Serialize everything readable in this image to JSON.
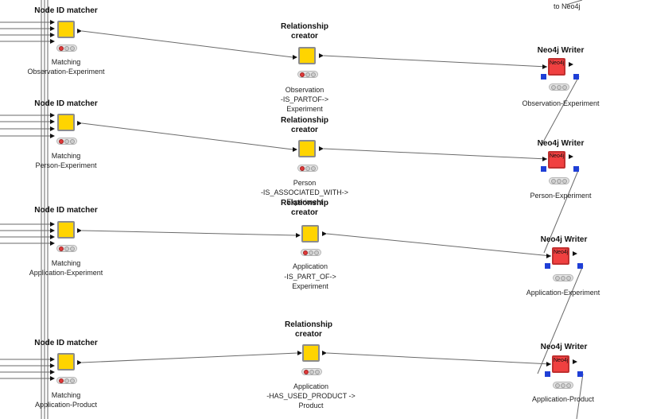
{
  "top_fragment": "to Neo4j",
  "rows": [
    {
      "matcher": {
        "title": "Node ID matcher",
        "label1": "Matching",
        "label2": "Observation-Experiment"
      },
      "creator": {
        "title1": "Relationship",
        "title2": "creator",
        "label1": "Observation",
        "label2": "-IS_PARTOF->",
        "label3": "Experiment"
      },
      "writer": {
        "title": "Neo4j Writer",
        "label": "Observation-Experiment",
        "icon": "Neo4j"
      }
    },
    {
      "matcher": {
        "title": "Node ID matcher",
        "label1": "Matching",
        "label2": "Person-Experiment"
      },
      "creator": {
        "title1": "Relationship",
        "title2": "creator",
        "label1": "Person",
        "label2": "-IS_ASSOCIATED_WITH->",
        "label3": "Experiment"
      },
      "writer": {
        "title": "Neo4j Writer",
        "label": "Person-Experiment",
        "icon": "Neo4j"
      }
    },
    {
      "matcher": {
        "title": "Node ID matcher",
        "label1": "Matching",
        "label2": "Application-Experiment"
      },
      "creator": {
        "title1": "Relationship",
        "title2": "creator",
        "label1": "Application",
        "label2": "-IS_PART_OF->",
        "label3": "Experiment"
      },
      "writer": {
        "title": "Neo4j Writer",
        "label": "Application-Experiment",
        "icon": "Neo4j"
      }
    },
    {
      "matcher": {
        "title": "Node ID matcher",
        "label1": "Matching",
        "label2": "Application-Product"
      },
      "creator": {
        "title1": "Relationship",
        "title2": "creator",
        "label1": "Application",
        "label2": "-HAS_USED_PRODUCT ->",
        "label3": "Product"
      },
      "writer": {
        "title": "Neo4j Writer",
        "label": "Application-Product",
        "icon": "Neo4j"
      }
    }
  ],
  "colors": {
    "matcher": "#ffd400",
    "creator": "#ffd400",
    "writer": "#f04040",
    "port_blue": "#1f3fd6"
  }
}
